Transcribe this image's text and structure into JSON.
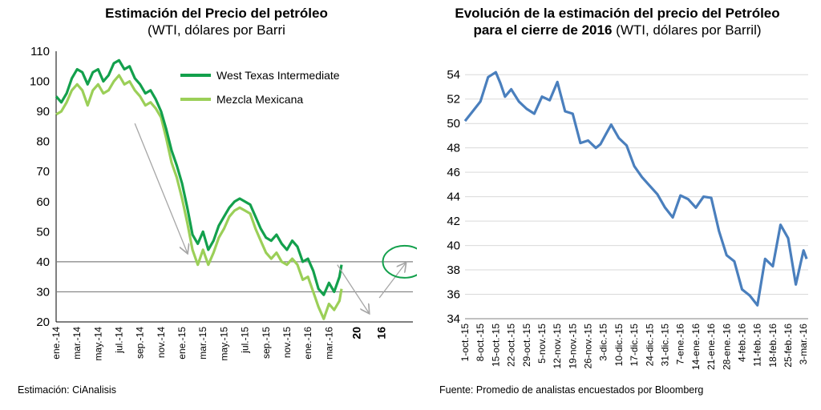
{
  "left": {
    "title": "Estimación del Precio del petróleo",
    "subtitle": "(WTI, dólares por Barri",
    "footnote": "Estimación: CiAnalisis"
  },
  "right": {
    "title_line1": "Evolución de la estimación del precio del Petróleo",
    "title_line2_bold": "para el cierre de 2016",
    "title_line2_rest": " (WTI, dólares por Barril)",
    "footnote": "Fuente: Promedio de analistas encuestados por Bloomberg"
  },
  "chart_data": [
    {
      "type": "line",
      "title": "Estimación del Precio del petróleo",
      "subtitle": "(WTI, dólares por Barri",
      "ylim": [
        20,
        110
      ],
      "yticks": [
        20,
        30,
        40,
        50,
        60,
        70,
        80,
        90,
        100,
        110
      ],
      "xticks": [
        "ene.-14",
        "mar.-14",
        "may.-14",
        "jul.-14",
        "sep.-14",
        "nov.-14",
        "ene.-15",
        "mar.-15",
        "may.-15",
        "jul.-15",
        "sep.-15",
        "nov.-15",
        "ene.-16",
        "mar.-16"
      ],
      "extra_xticks": [
        "20",
        "16"
      ],
      "reference_lines": [
        40,
        30
      ],
      "legend_position": "top-right",
      "colors": {
        "wti": "#13a04c",
        "mezcla": "#9bcf58",
        "annotation": "#a6a6a6",
        "circle": "#13a04c",
        "refline": "#808080"
      },
      "months_since_start_scale": "x is month index from ene.-14 (0) to mar.-16 (26)",
      "series": [
        {
          "name": "West Texas Intermediate",
          "x": [
            0,
            0.5,
            1,
            1.5,
            2,
            2.5,
            3,
            3.5,
            4,
            4.5,
            5,
            5.5,
            6,
            6.5,
            7,
            7.5,
            8,
            8.5,
            9,
            9.5,
            10,
            10.5,
            11,
            11.5,
            12,
            12.5,
            13,
            13.5,
            14,
            14.5,
            15,
            15.5,
            16,
            16.5,
            17,
            17.5,
            18,
            18.5,
            19,
            19.5,
            20,
            20.5,
            21,
            21.5,
            22,
            22.5,
            23,
            23.5,
            24,
            24.5,
            25,
            25.5,
            26,
            26.5,
            27,
            27.2
          ],
          "values": [
            95,
            93,
            96,
            101,
            104,
            103,
            99,
            103,
            104,
            100,
            102,
            106,
            107,
            104,
            105,
            101,
            99,
            96,
            97,
            94,
            90,
            84,
            77,
            72,
            66,
            58,
            49,
            46,
            50,
            44,
            47,
            52,
            55,
            58,
            60,
            61,
            60,
            59,
            55,
            51,
            48,
            47,
            49,
            46,
            44,
            47,
            45,
            40,
            41,
            37,
            31,
            29,
            33,
            30,
            35,
            39
          ]
        },
        {
          "name": "Mezcla Mexicana",
          "x": [
            0,
            0.5,
            1,
            1.5,
            2,
            2.5,
            3,
            3.5,
            4,
            4.5,
            5,
            5.5,
            6,
            6.5,
            7,
            7.5,
            8,
            8.5,
            9,
            9.5,
            10,
            10.5,
            11,
            11.5,
            12,
            12.5,
            13,
            13.5,
            14,
            14.5,
            15,
            15.5,
            16,
            16.5,
            17,
            17.5,
            18,
            18.5,
            19,
            19.5,
            20,
            20.5,
            21,
            21.5,
            22,
            22.5,
            23,
            23.5,
            24,
            24.5,
            25,
            25.5,
            26,
            26.5,
            27,
            27.2
          ],
          "values": [
            89,
            90,
            93,
            97,
            99,
            97,
            92,
            97,
            99,
            96,
            97,
            100,
            102,
            99,
            100,
            97,
            95,
            92,
            93,
            91,
            88,
            81,
            73,
            68,
            61,
            53,
            44,
            39,
            44,
            39,
            43,
            48,
            51,
            55,
            57,
            58,
            57,
            56,
            51,
            47,
            43,
            41,
            43,
            40,
            39,
            41,
            39,
            34,
            35,
            30,
            25,
            21,
            26,
            24,
            27,
            31
          ]
        }
      ]
    },
    {
      "type": "line",
      "title": "Evolución de la estimación del precio del Petróleo para el cierre de 2016",
      "subtitle": "(WTI, dólares por Barril)",
      "ylim": [
        34,
        55
      ],
      "yticks": [
        34,
        36,
        38,
        40,
        42,
        44,
        46,
        48,
        50,
        52,
        54
      ],
      "xticks": [
        "1-oct.-15",
        "8-oct.-15",
        "15-oct.-15",
        "22-oct.-15",
        "29-oct.-15",
        "5-nov.-15",
        "12-nov.-15",
        "19-nov.-15",
        "26-nov.-15",
        "3-dic.-15",
        "10-dic.-15",
        "17-dic.-15",
        "24-dic.-15",
        "31-dic.-15",
        "7-ene.-16",
        "14-ene.-16",
        "21-ene.-16",
        "28-ene.-16",
        "4-feb.-16",
        "11-feb.-16",
        "18-feb.-16",
        "25-feb.-16",
        "3-mar.-16"
      ],
      "grid": "horizontal",
      "colors": {
        "line": "#4a7fbd",
        "grid": "#d9d9d9"
      },
      "series": [
        {
          "x": [
            0,
            0.5,
            1,
            1.5,
            2,
            2.3,
            2.6,
            3,
            3.5,
            4,
            4.5,
            5,
            5.5,
            6,
            6.5,
            7,
            7.5,
            8,
            8.5,
            8.8,
            9.1,
            9.5,
            10,
            10.5,
            11,
            11.5,
            12,
            12.5,
            13,
            13.5,
            14,
            14.5,
            15,
            15.5,
            16,
            16.5,
            17,
            17.5,
            18,
            18.5,
            19,
            19.5,
            20,
            20.5,
            21,
            21.5,
            22,
            22.2
          ],
          "values": [
            50.2,
            51.0,
            51.8,
            53.8,
            54.2,
            53.3,
            52.2,
            52.8,
            51.8,
            51.2,
            50.8,
            52.2,
            51.9,
            53.4,
            51.0,
            50.8,
            48.4,
            48.6,
            48.0,
            48.3,
            49.0,
            49.9,
            48.8,
            48.2,
            46.5,
            45.6,
            44.9,
            44.2,
            43.1,
            42.3,
            44.1,
            43.8,
            43.1,
            44.0,
            43.9,
            41.2,
            39.2,
            38.7,
            36.4,
            35.9,
            35.1,
            38.9,
            38.3,
            41.7,
            40.6,
            36.8,
            39.6,
            38.9
          ]
        }
      ]
    }
  ]
}
